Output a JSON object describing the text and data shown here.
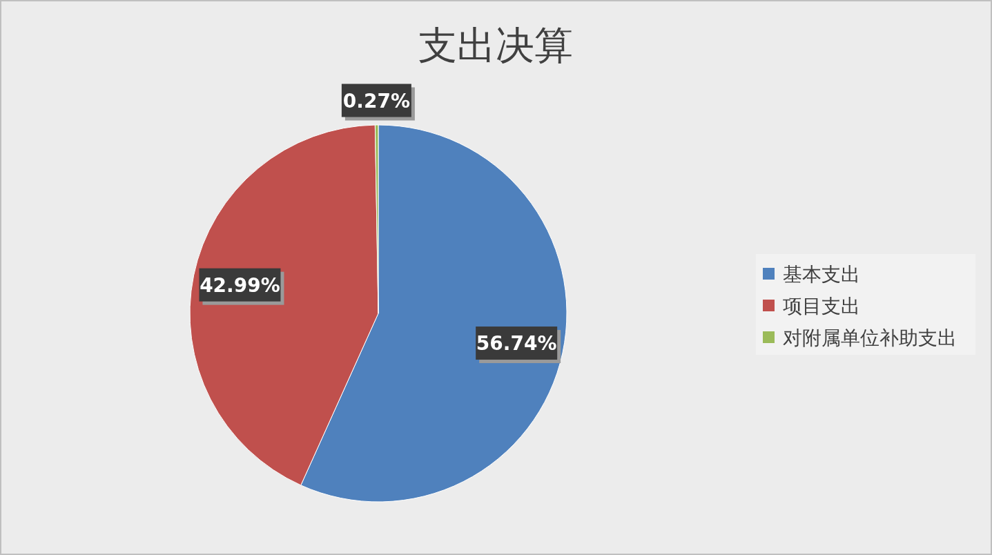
{
  "chart_data": {
    "type": "pie",
    "title": "支出决算",
    "categories": [
      "基本支出",
      "项目支出",
      "对附属单位补助支出"
    ],
    "values": [
      56.74,
      42.99,
      0.27
    ],
    "colors": [
      "#4f81bd",
      "#c0504d",
      "#9bbb59"
    ],
    "value_labels": [
      "56.74%",
      "42.99%",
      "0.27%"
    ],
    "legend": "right"
  }
}
